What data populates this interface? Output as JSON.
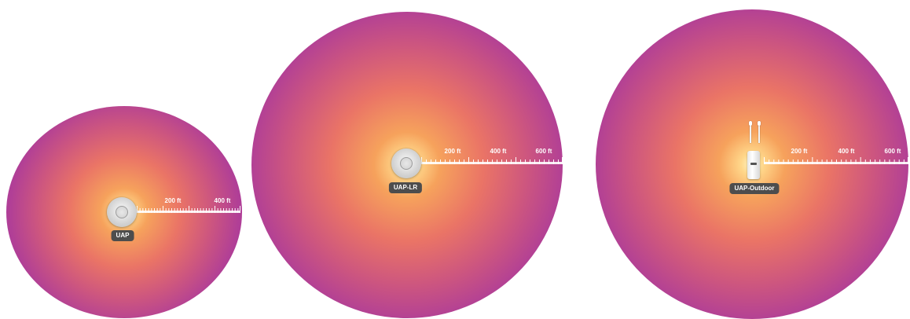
{
  "access_points": [
    {
      "model": "UAP",
      "ruler_labels": [
        "200 ft",
        "400 ft"
      ],
      "ap_icon": "ceiling-dome-icon"
    },
    {
      "model": "UAP-LR",
      "ruler_labels": [
        "200 ft",
        "400 ft",
        "600 ft"
      ],
      "ap_icon": "ceiling-dome-icon"
    },
    {
      "model": "UAP-Outdoor",
      "ruler_labels": [
        "200 ft",
        "400 ft",
        "600 ft"
      ],
      "ap_icon": "outdoor-antenna-unit-icon"
    }
  ],
  "colors": {
    "center": "#fff6c8",
    "mid": "#ea7466",
    "outer": "#a93aa0",
    "badge": "#4d4d4d"
  }
}
